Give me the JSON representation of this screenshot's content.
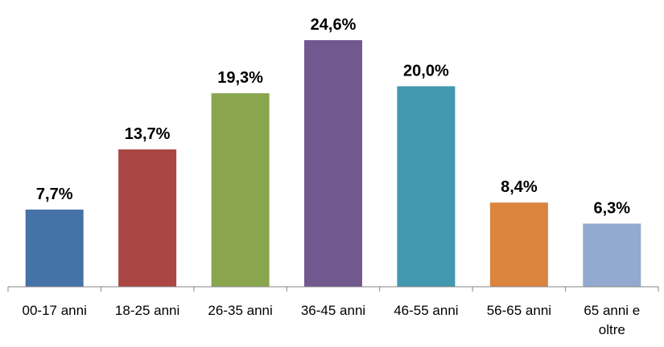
{
  "chart_data": {
    "type": "bar",
    "categories": [
      "00-17 anni",
      "18-25 anni",
      "26-35 anni",
      "36-45 anni",
      "46-55 anni",
      "56-65 anni",
      "65 anni e oltre"
    ],
    "category_lines": [
      [
        "00-17 anni"
      ],
      [
        "18-25 anni"
      ],
      [
        "26-35 anni"
      ],
      [
        "36-45 anni"
      ],
      [
        "46-55 anni"
      ],
      [
        "56-65 anni"
      ],
      [
        "65 anni e",
        "oltre"
      ]
    ],
    "values": [
      7.7,
      13.7,
      19.3,
      24.6,
      20.0,
      8.4,
      6.3
    ],
    "data_labels": [
      "7,7%",
      "13,7%",
      "19,3%",
      "24,6%",
      "20,0%",
      "8,4%",
      "6,3%"
    ],
    "colors": [
      "#4572A7",
      "#AA4643",
      "#89A54E",
      "#71588F",
      "#4198AF",
      "#DB843D",
      "#93A9CF"
    ],
    "axis_color": "#868686",
    "title": "",
    "xlabel": "",
    "ylabel": "",
    "ylim": [
      0,
      24.6
    ],
    "grid": false,
    "legend": "none"
  }
}
